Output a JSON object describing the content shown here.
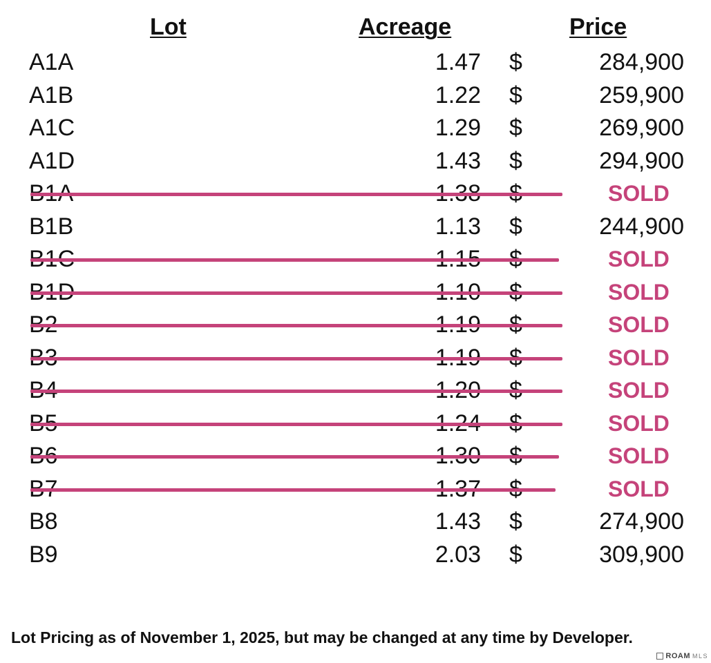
{
  "headers": {
    "lot": "Lot",
    "acreage": "Acreage",
    "price": "Price"
  },
  "currency_symbol": "$",
  "rows": [
    {
      "lot": "A1A",
      "acreage": "1.47",
      "price": "284,900",
      "sold": false
    },
    {
      "lot": "A1B",
      "acreage": "1.22",
      "price": "259,900",
      "sold": false
    },
    {
      "lot": "A1C",
      "acreage": "1.29",
      "price": "269,900",
      "sold": false
    },
    {
      "lot": "A1D",
      "acreage": "1.43",
      "price": "294,900",
      "sold": false
    },
    {
      "lot": "B1A",
      "acreage": "1.38",
      "price": "SOLD",
      "sold": true
    },
    {
      "lot": "B1B",
      "acreage": "1.13",
      "price": "244,900",
      "sold": false
    },
    {
      "lot": "B1C",
      "acreage": "1.15",
      "price": "SOLD",
      "sold": true
    },
    {
      "lot": "B1D",
      "acreage": "1.10",
      "price": "SOLD",
      "sold": true
    },
    {
      "lot": "B2",
      "acreage": "1.19",
      "price": "SOLD",
      "sold": true
    },
    {
      "lot": "B3",
      "acreage": "1.19",
      "price": "SOLD",
      "sold": true
    },
    {
      "lot": "B4",
      "acreage": "1.20",
      "price": "SOLD",
      "sold": true
    },
    {
      "lot": "B5",
      "acreage": "1.24",
      "price": "SOLD",
      "sold": true
    },
    {
      "lot": "B6",
      "acreage": "1.30",
      "price": "SOLD",
      "sold": true
    },
    {
      "lot": "B7",
      "acreage": "1.37",
      "price": "SOLD",
      "sold": true
    },
    {
      "lot": "B8",
      "acreage": "1.43",
      "price": "274,900",
      "sold": false
    },
    {
      "lot": "B9",
      "acreage": "2.03",
      "price": "309,900",
      "sold": false
    }
  ],
  "footer_note": "Lot Pricing as of November 1, 2025, but may be changed at any time by Developer.",
  "watermark": {
    "brand": "ROAM",
    "suffix": "MLS"
  },
  "colors": {
    "sold": "#c5437a",
    "text": "#111111"
  }
}
